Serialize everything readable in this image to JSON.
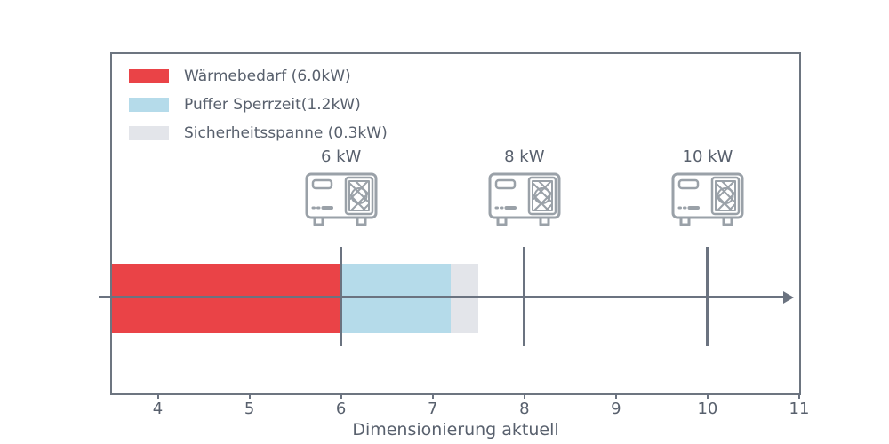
{
  "chart_data": {
    "type": "bar",
    "orientation": "horizontal",
    "title": "",
    "xlabel": "Dimensionierung aktuell",
    "ylabel": "",
    "xlim": [
      3.5,
      11
    ],
    "x_ticks": [
      4,
      5,
      6,
      7,
      8,
      9,
      10,
      11
    ],
    "grid": false,
    "legend_position": "upper left",
    "series": [
      {
        "name": "Wärmebedarf (6.0kW)",
        "value_kw": 6.0,
        "span": [
          3.5,
          6.0
        ],
        "color": "#ea4347"
      },
      {
        "name": "Puffer Sperrzeit(1.2kW)",
        "value_kw": 1.2,
        "span": [
          6.0,
          7.2
        ],
        "color": "#b5dbea"
      },
      {
        "name": "Sicherheitsspanne (0.3kW)",
        "value_kw": 0.3,
        "span": [
          7.2,
          7.5
        ],
        "color": "#e3e5ea"
      }
    ],
    "markers": [
      {
        "label": "6 kW",
        "x": 6
      },
      {
        "label": "8 kW",
        "x": 8
      },
      {
        "label": "10 kW",
        "x": 10
      }
    ],
    "annotation_arrow": {
      "from_x": 3.4,
      "to_x": 10.95
    }
  },
  "colors": {
    "axis_line": "#6b7380",
    "text": "#58606d",
    "icon_stroke": "#9aa1a8"
  }
}
